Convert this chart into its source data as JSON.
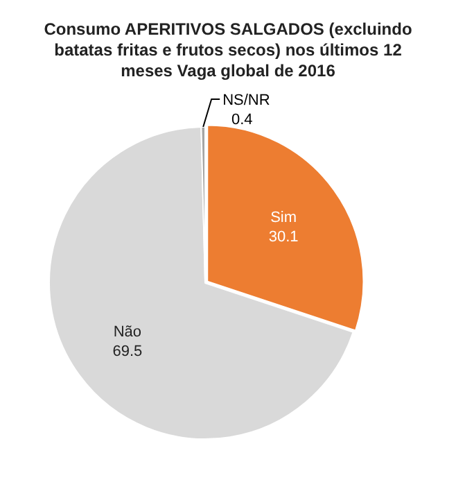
{
  "chart_data": {
    "type": "pie",
    "title": "Consumo APERITIVOS SALGADOS (excluindo batatas fritas e frutos secos) nos últimos 12 meses Vaga global de 2016",
    "categories": [
      "Sim",
      "Não",
      "NS/NR"
    ],
    "values": [
      30.1,
      69.5,
      0.4
    ],
    "colors": [
      "#ed7d31",
      "#d9d9d9",
      "#a5a5a5"
    ],
    "data_labels": true,
    "legend": false
  }
}
